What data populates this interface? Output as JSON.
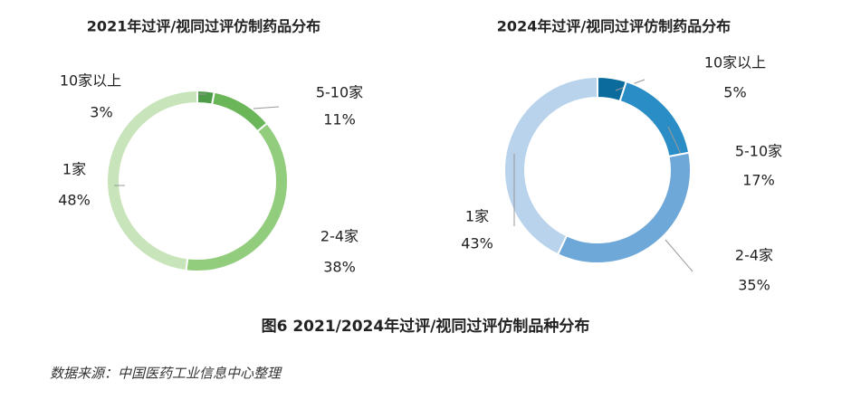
{
  "chart_data": [
    {
      "type": "pie",
      "title": "2021年过评/视同过评仿制药品分布",
      "categories": [
        "10家以上",
        "5-10家",
        "2-4家",
        "1家"
      ],
      "values": [
        3,
        11,
        38,
        48
      ],
      "value_labels": [
        "3%",
        "11%",
        "38%",
        "48%"
      ],
      "colors": [
        "#4e9c48",
        "#6cb65a",
        "#92cc7d",
        "#c8e4ba"
      ]
    },
    {
      "type": "pie",
      "title": "2024年过评/视同过评仿制药品分布",
      "categories": [
        "10家以上",
        "5-10家",
        "2-4家",
        "1家"
      ],
      "values": [
        5,
        17,
        35,
        43
      ],
      "value_labels": [
        "5%",
        "17%",
        "35%",
        "43%"
      ],
      "colors": [
        "#0a6b9c",
        "#2b8dc6",
        "#6ea8d9",
        "#b8d3eb"
      ]
    }
  ],
  "caption": "图6 2021/2024年过评/视同过评仿制品种分布",
  "source": "数据来源：中国医药工业信息中心整理"
}
